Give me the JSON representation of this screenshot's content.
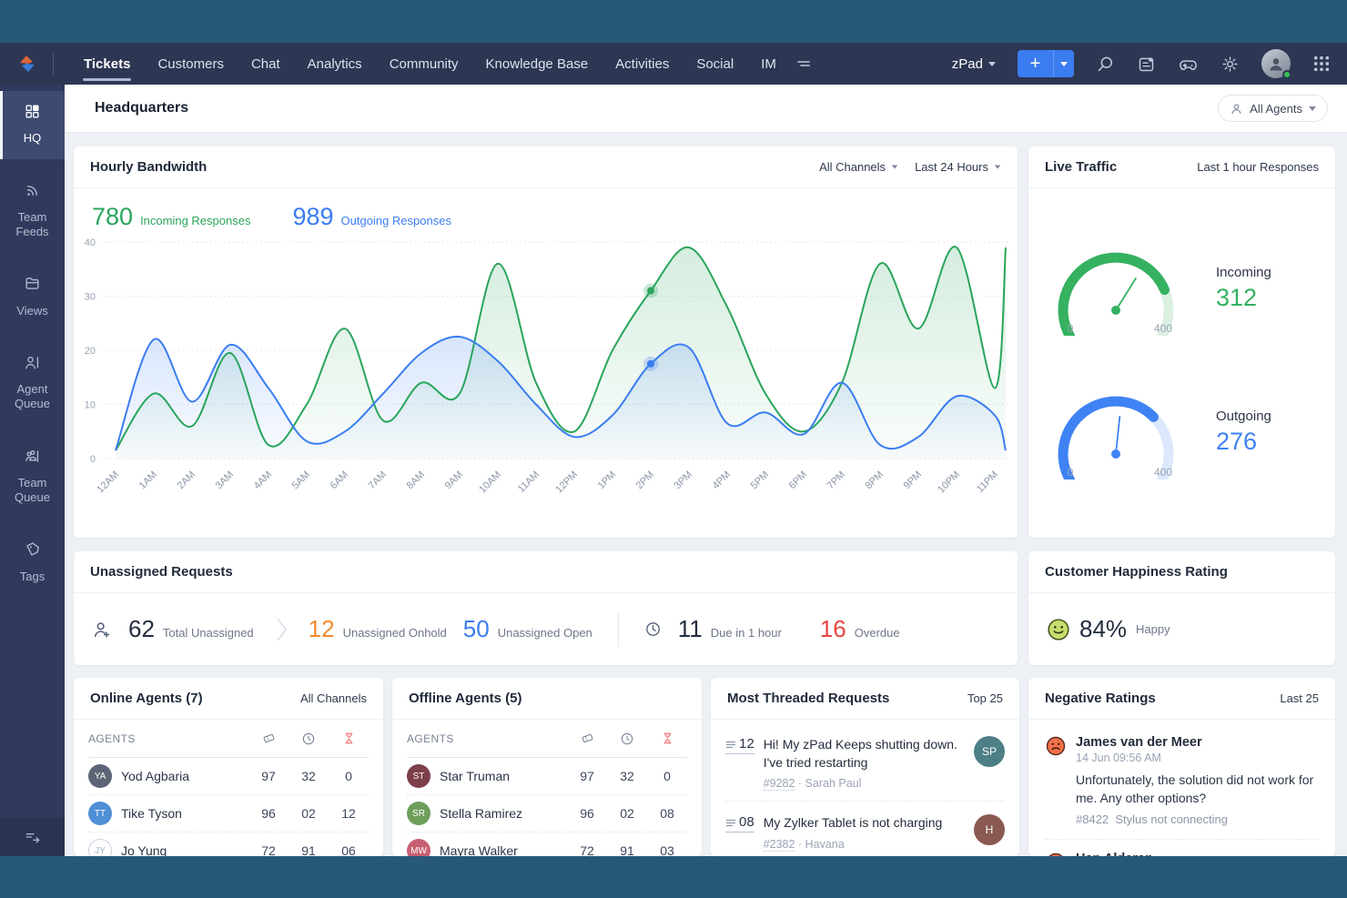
{
  "colors": {
    "green": "#2aa55c",
    "blue": "#3b7df0",
    "orange": "#f08c2e",
    "red": "#e8443f",
    "navy": "#2d3653",
    "frame": "#265878",
    "gauge_green": "#35b160",
    "gauge_green_track": "#dcf0e2",
    "gauge_blue": "#3e82f4",
    "gauge_blue_track": "#dce9fc"
  },
  "navbar": {
    "tabs": [
      {
        "label": "Tickets",
        "active": true
      },
      {
        "label": "Customers",
        "active": false
      },
      {
        "label": "Chat",
        "active": false
      },
      {
        "label": "Analytics",
        "active": false
      },
      {
        "label": "Community",
        "active": false
      },
      {
        "label": "Knowledge Base",
        "active": false
      },
      {
        "label": "Activities",
        "active": false
      },
      {
        "label": "Social",
        "active": false
      },
      {
        "label": "IM",
        "active": false
      }
    ],
    "product_label": "zPad",
    "plus_label": "+"
  },
  "sidebar": {
    "items": [
      {
        "label": "HQ",
        "icon": "hq",
        "active": true
      },
      {
        "label": "Team Feeds",
        "icon": "feeds",
        "active": false
      },
      {
        "label": "Views",
        "icon": "views",
        "active": false
      },
      {
        "label": "Agent Queue",
        "icon": "agent-queue",
        "active": false
      },
      {
        "label": "Team Queue",
        "icon": "team-queue",
        "active": false
      },
      {
        "label": "Tags",
        "icon": "tags",
        "active": false
      }
    ]
  },
  "header": {
    "title": "Headquarters",
    "agent_filter": "All Agents"
  },
  "cards": {
    "hourly_bandwidth": {
      "title": "Hourly Bandwidth",
      "filters": [
        {
          "label": "All Channels"
        },
        {
          "label": "Last 24 Hours"
        }
      ],
      "stats": [
        {
          "value": "780",
          "label": "Incoming Responses",
          "color": "#2aa55c"
        },
        {
          "value": "989",
          "label": "Outgoing Responses",
          "color": "#3b7df0"
        }
      ]
    },
    "live_traffic": {
      "title": "Live Traffic",
      "subtitle": "Last 1 hour Responses"
    },
    "unassigned": {
      "title": "Unassigned Requests",
      "total": {
        "value": "62",
        "label": "Total Unassigned"
      },
      "onhold": {
        "value": "12",
        "label": "Unassigned Onhold",
        "color": "#f08c2e"
      },
      "open": {
        "value": "50",
        "label": "Unassigned Open",
        "color": "#3b7df0"
      },
      "due": {
        "value": "11",
        "label": "Due in 1 hour"
      },
      "overdue": {
        "value": "16",
        "label": "Overdue",
        "color": "#e8443f"
      }
    },
    "happiness": {
      "title": "Customer Happiness Rating",
      "value": "84%",
      "label": "Happy"
    },
    "online_agents": {
      "title": "Online Agents (7)",
      "right": "All Channels",
      "col_label": "AGENTS",
      "rows": [
        {
          "name": "Yod Agbaria",
          "initials": "YA",
          "avatar_bg": "#5c6575",
          "tickets": "97",
          "time": "32",
          "overdue": "0"
        },
        {
          "name": "Tike Tyson",
          "initials": "TT",
          "avatar_bg": "#4f8fd6",
          "tickets": "96",
          "time": "02",
          "overdue": "12"
        },
        {
          "name": "Jo Yung",
          "initials": "JY",
          "avatar_bg": "outline",
          "tickets": "72",
          "time": "91",
          "overdue": "06"
        }
      ]
    },
    "offline_agents": {
      "title": "Offline Agents (5)",
      "right": "",
      "col_label": "AGENTS",
      "rows": [
        {
          "name": "Star Truman",
          "initials": "ST",
          "avatar_bg": "#7c3f4b",
          "tickets": "97",
          "time": "32",
          "overdue": "0"
        },
        {
          "name": "Stella Ramirez",
          "initials": "SR",
          "avatar_bg": "#6f9e5b",
          "tickets": "96",
          "time": "02",
          "overdue": "08"
        },
        {
          "name": "Mayra Walker",
          "initials": "MW",
          "avatar_bg": "#c75f72",
          "tickets": "72",
          "time": "91",
          "overdue": "03"
        }
      ]
    },
    "threaded": {
      "title": "Most Threaded Requests",
      "right": "Top 25",
      "items": [
        {
          "count": "12",
          "text": "Hi! My zPad Keeps shutting down. I've tried restarting",
          "ticket": "#9282",
          "name": "Sarah Paul",
          "initials": "SP",
          "avatar_bg": "#4d7f86"
        },
        {
          "count": "08",
          "text": "My Zylker Tablet is not charging",
          "ticket": "#2382",
          "name": "Havana",
          "initials": "H",
          "avatar_bg": "#8a5a52"
        }
      ]
    },
    "negative": {
      "title": "Negative Ratings",
      "right": "Last 25",
      "items": [
        {
          "name": "James van der Meer",
          "time": "14 Jun 09:56 AM",
          "text": "Unfortunately, the solution did not work for me. Any other options?",
          "ticket": "#8422",
          "subject": "Stylus not connecting"
        },
        {
          "name": "Han Alderan",
          "time": "",
          "text": "",
          "ticket": "",
          "subject": ""
        }
      ]
    }
  },
  "chart_data": [
    {
      "type": "area",
      "title": "Hourly Bandwidth",
      "x": [
        "12AM",
        "1AM",
        "2AM",
        "3AM",
        "4AM",
        "5AM",
        "6AM",
        "7AM",
        "8AM",
        "9AM",
        "10AM",
        "11AM",
        "12PM",
        "1PM",
        "2PM",
        "3PM",
        "4PM",
        "5PM",
        "6PM",
        "7PM",
        "8PM",
        "9PM",
        "10PM",
        "11PM"
      ],
      "series": [
        {
          "name": "Incoming Responses",
          "total": 780,
          "color": "#2aa55c",
          "values": [
            1.5,
            12,
            6,
            19.5,
            2.5,
            10,
            24,
            7,
            14,
            12,
            36,
            14,
            5,
            20,
            31,
            39,
            28,
            12,
            5,
            14,
            36,
            24,
            39,
            13
          ],
          "edge_value": 39
        },
        {
          "name": "Outgoing Responses",
          "total": 989,
          "color": "#3b7df0",
          "values": [
            1.5,
            22,
            10.5,
            21,
            13,
            3.2,
            5,
            12,
            19.5,
            22.5,
            18,
            10,
            4,
            8,
            17.5,
            20.5,
            6.5,
            8.5,
            4.5,
            14,
            2.5,
            4,
            11.5,
            8
          ],
          "edge_value": 1.5
        }
      ],
      "markers": [
        {
          "series": 0,
          "x_index": 14,
          "value": 31
        },
        {
          "series": 1,
          "x_index": 14,
          "value": 17.5
        }
      ],
      "ylim": [
        0,
        40
      ],
      "yticks": [
        0,
        10,
        20,
        30,
        40
      ],
      "grid": "dotted-horizontal",
      "legend_position": "none"
    },
    {
      "type": "gauge",
      "label": "Incoming",
      "value": 312,
      "min": 0,
      "max": 400,
      "scale_labels": [
        "0",
        "400"
      ],
      "color": "#35b160",
      "track": "#dcf0e2",
      "needle_deg": 58
    },
    {
      "type": "gauge",
      "label": "Outgoing",
      "value": 276,
      "min": 0,
      "max": 400,
      "scale_labels": [
        "0",
        "400"
      ],
      "color": "#3e82f4",
      "track": "#dce9fc",
      "needle_deg": 84
    }
  ]
}
